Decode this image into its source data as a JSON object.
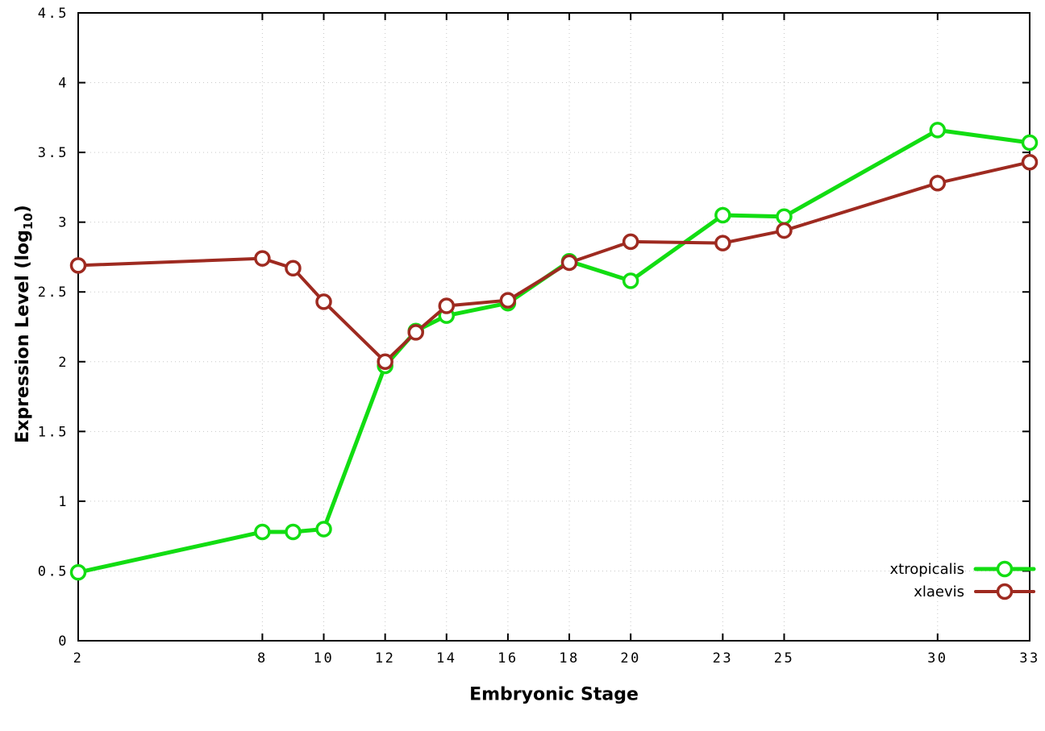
{
  "page": {
    "background_color": "#ffffff"
  },
  "chart_data": {
    "type": "line",
    "title": "",
    "xlabel": "Embryonic Stage",
    "ylabel": "Expression Level (log10)",
    "ylabel_parts": {
      "prefix": "Expression Level (log",
      "sub": "10",
      "suffix": ")"
    },
    "xlim": [
      2,
      33
    ],
    "ylim": [
      0,
      4.5
    ],
    "x_ticks": [
      2,
      8,
      10,
      12,
      14,
      16,
      18,
      20,
      23,
      25,
      30,
      33
    ],
    "y_ticks": [
      0,
      0.5,
      1,
      1.5,
      2,
      2.5,
      3,
      3.5,
      4,
      4.5
    ],
    "grid": true,
    "grid_color": "#c8c8c8",
    "border_color": "#000000",
    "legend_position": "inside-bottom-right",
    "marker": "open-circle",
    "x": [
      2,
      8,
      9,
      10,
      12,
      13,
      14,
      16,
      18,
      20,
      23,
      25,
      30,
      33
    ],
    "series": [
      {
        "name": "xtropicalis",
        "color": "#12dd12",
        "line_width": 5,
        "values": [
          0.49,
          0.78,
          0.78,
          0.8,
          1.97,
          2.22,
          2.33,
          2.42,
          2.72,
          2.58,
          3.05,
          3.04,
          3.66,
          3.57
        ]
      },
      {
        "name": "xlaevis",
        "color": "#9e2a20",
        "line_width": 4,
        "values": [
          2.69,
          2.74,
          2.67,
          2.43,
          2.0,
          2.21,
          2.4,
          2.44,
          2.71,
          2.86,
          2.85,
          2.94,
          3.28,
          3.43
        ]
      }
    ]
  }
}
